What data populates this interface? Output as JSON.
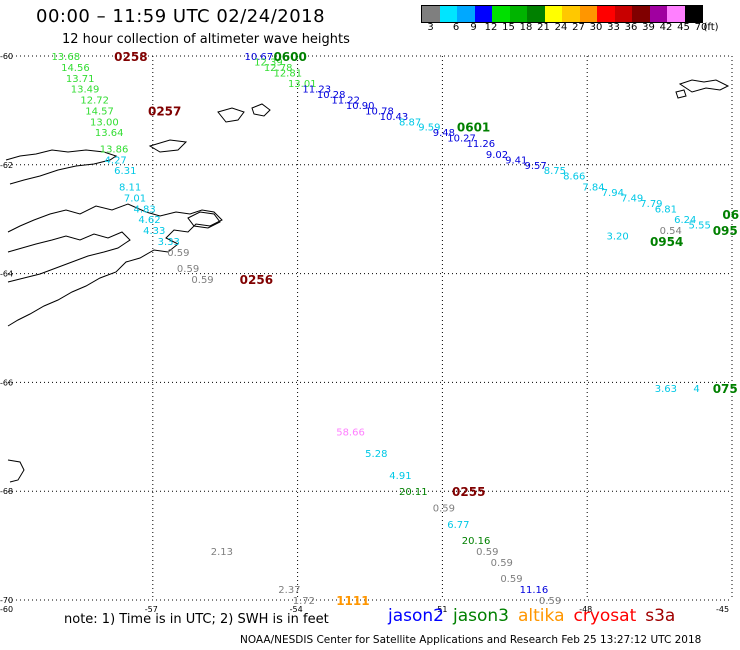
{
  "header": {
    "title": "00:00 – 11:59 UTC 02/24/2018",
    "subtitle": "12 hour collection of altimeter wave heights"
  },
  "colorbar": {
    "unit_label": "(ft)",
    "levels": [
      "3",
      "6",
      "9",
      "12",
      "15",
      "18",
      "21",
      "24",
      "27",
      "30",
      "33",
      "36",
      "39",
      "42",
      "45",
      "70"
    ],
    "colors": [
      "#7f7f7f",
      "#00e5ff",
      "#00a8ff",
      "#0000ff",
      "#00e000",
      "#00b400",
      "#008000",
      "#ffff00",
      "#ffc800",
      "#ff9600",
      "#ff0000",
      "#c80000",
      "#800000",
      "#a000a0",
      "#ff80ff",
      "#000000"
    ]
  },
  "axes": {
    "lat_ticks": [
      "-60",
      "-62",
      "-64",
      "-66",
      "-68",
      "-70"
    ],
    "lon_ticks": [
      "-60",
      "-57",
      "-54",
      "-51",
      "-48",
      "-45"
    ]
  },
  "map_points": [
    {
      "text": "13.68",
      "color": "#33dd33",
      "lat": -60.0,
      "lon": -59.1
    },
    {
      "text": "14.56",
      "color": "#33dd33",
      "lat": -60.2,
      "lon": -58.9
    },
    {
      "text": "13.71",
      "color": "#33dd33",
      "lat": -60.4,
      "lon": -58.8
    },
    {
      "text": "13.49",
      "color": "#33dd33",
      "lat": -60.6,
      "lon": -58.7
    },
    {
      "text": "12.72",
      "color": "#33dd33",
      "lat": -60.8,
      "lon": -58.5
    },
    {
      "text": "14.57",
      "color": "#33dd33",
      "lat": -61.0,
      "lon": -58.4
    },
    {
      "text": "13.00",
      "color": "#33dd33",
      "lat": -61.2,
      "lon": -58.3
    },
    {
      "text": "13.64",
      "color": "#33dd33",
      "lat": -61.4,
      "lon": -58.2
    },
    {
      "text": "13.86",
      "color": "#33dd33",
      "lat": -61.7,
      "lon": -58.1
    },
    {
      "text": "4.27",
      "color": "#00c8e6",
      "lat": -61.9,
      "lon": -58.0
    },
    {
      "text": "6.31",
      "color": "#00c8e6",
      "lat": -62.1,
      "lon": -57.8
    },
    {
      "text": "8.11",
      "color": "#00c8e6",
      "lat": -62.4,
      "lon": -57.7
    },
    {
      "text": "7.01",
      "color": "#00c8e6",
      "lat": -62.6,
      "lon": -57.6
    },
    {
      "text": "4.83",
      "color": "#00c8e6",
      "lat": -62.8,
      "lon": -57.4
    },
    {
      "text": "4.62",
      "color": "#00c8e6",
      "lat": -63.0,
      "lon": -57.3
    },
    {
      "text": "4.33",
      "color": "#00c8e6",
      "lat": -63.2,
      "lon": -57.2
    },
    {
      "text": "3.33",
      "color": "#00c8e6",
      "lat": -63.4,
      "lon": -56.9
    },
    {
      "text": "0.59",
      "color": "#7f7f7f",
      "lat": -63.6,
      "lon": -56.7
    },
    {
      "text": "0.59",
      "color": "#7f7f7f",
      "lat": -63.9,
      "lon": -56.5
    },
    {
      "text": "0.59",
      "color": "#7f7f7f",
      "lat": -64.1,
      "lon": -56.2
    },
    {
      "text": "10.67",
      "color": "#0000dd",
      "lat": -60.0,
      "lon": -55.1
    },
    {
      "text": "12.39",
      "color": "#33dd33",
      "lat": -60.1,
      "lon": -54.9
    },
    {
      "text": "12.78",
      "color": "#33dd33",
      "lat": -60.2,
      "lon": -54.7
    },
    {
      "text": "12.81",
      "color": "#33dd33",
      "lat": -60.3,
      "lon": -54.5
    },
    {
      "text": "13.01",
      "color": "#33dd33",
      "lat": -60.5,
      "lon": -54.2
    },
    {
      "text": "11.23",
      "color": "#0000dd",
      "lat": -60.6,
      "lon": -53.9
    },
    {
      "text": "10.28",
      "color": "#0000dd",
      "lat": -60.7,
      "lon": -53.6
    },
    {
      "text": "11.22",
      "color": "#0000dd",
      "lat": -60.8,
      "lon": -53.3
    },
    {
      "text": "10.90",
      "color": "#0000dd",
      "lat": -60.9,
      "lon": -53.0
    },
    {
      "text": "10.78",
      "color": "#0000dd",
      "lat": -61.0,
      "lon": -52.6
    },
    {
      "text": "10.43",
      "color": "#0000dd",
      "lat": -61.1,
      "lon": -52.3
    },
    {
      "text": "8.87",
      "color": "#00c8e6",
      "lat": -61.2,
      "lon": -51.9
    },
    {
      "text": "9.59",
      "color": "#00c8e6",
      "lat": -61.3,
      "lon": -51.5
    },
    {
      "text": "9.48",
      "color": "#0000dd",
      "lat": -61.4,
      "lon": -51.2
    },
    {
      "text": "10.27",
      "color": "#0000dd",
      "lat": -61.5,
      "lon": -50.9
    },
    {
      "text": "11.26",
      "color": "#0000dd",
      "lat": -61.6,
      "lon": -50.5
    },
    {
      "text": "9.02",
      "color": "#0000dd",
      "lat": -61.8,
      "lon": -50.1
    },
    {
      "text": "9.41",
      "color": "#0000dd",
      "lat": -61.9,
      "lon": -49.7
    },
    {
      "text": "9.57",
      "color": "#0000dd",
      "lat": -62.0,
      "lon": -49.3
    },
    {
      "text": "8.75",
      "color": "#00c8e6",
      "lat": -62.1,
      "lon": -48.9
    },
    {
      "text": "8.66",
      "color": "#00c8e6",
      "lat": -62.2,
      "lon": -48.5
    },
    {
      "text": "7.84",
      "color": "#00c8e6",
      "lat": -62.4,
      "lon": -48.1
    },
    {
      "text": "7.94",
      "color": "#00c8e6",
      "lat": -62.5,
      "lon": -47.7
    },
    {
      "text": "7.49",
      "color": "#00c8e6",
      "lat": -62.6,
      "lon": -47.3
    },
    {
      "text": "7.79",
      "color": "#00c8e6",
      "lat": -62.7,
      "lon": -46.9
    },
    {
      "text": "6.81",
      "color": "#00c8e6",
      "lat": -62.8,
      "lon": -46.6
    },
    {
      "text": "6.24",
      "color": "#00c8e6",
      "lat": -63.0,
      "lon": -46.2
    },
    {
      "text": "5.55",
      "color": "#00c8e6",
      "lat": -63.1,
      "lon": -45.9
    },
    {
      "text": "0.54",
      "color": "#7f7f7f",
      "lat": -63.2,
      "lon": -46.5
    },
    {
      "text": "3.20",
      "color": "#00c8e6",
      "lat": -63.3,
      "lon": -47.6
    },
    {
      "text": "3.63",
      "color": "#00c8e6",
      "lat": -66.1,
      "lon": -46.6
    },
    {
      "text": "4",
      "color": "#00c8e6",
      "lat": -66.1,
      "lon": -45.8
    },
    {
      "text": "58.66",
      "color": "#ff80ff",
      "lat": -66.9,
      "lon": -53.2
    },
    {
      "text": "5.28",
      "color": "#00c8e6",
      "lat": -67.3,
      "lon": -52.6
    },
    {
      "text": "4.91",
      "color": "#00c8e6",
      "lat": -67.7,
      "lon": -52.1
    },
    {
      "text": "20.11",
      "color": "#008000",
      "lat": -68.0,
      "lon": -51.9
    },
    {
      "text": "0.59",
      "color": "#7f7f7f",
      "lat": -68.3,
      "lon": -51.2
    },
    {
      "text": "6.77",
      "color": "#00c8e6",
      "lat": -68.6,
      "lon": -50.9
    },
    {
      "text": "20.16",
      "color": "#008000",
      "lat": -68.9,
      "lon": -50.6
    },
    {
      "text": "0.59",
      "color": "#7f7f7f",
      "lat": -69.1,
      "lon": -50.3
    },
    {
      "text": "0.59",
      "color": "#7f7f7f",
      "lat": -69.3,
      "lon": -50.0
    },
    {
      "text": "0.59",
      "color": "#7f7f7f",
      "lat": -69.6,
      "lon": -49.8
    },
    {
      "text": "11.16",
      "color": "#0000dd",
      "lat": -69.8,
      "lon": -49.4
    },
    {
      "text": "0.59",
      "color": "#7f7f7f",
      "lat": -70.0,
      "lon": -49.0
    },
    {
      "text": "2.13",
      "color": "#7f7f7f",
      "lat": -69.1,
      "lon": -55.8
    },
    {
      "text": "2.37",
      "color": "#7f7f7f",
      "lat": -69.8,
      "lon": -54.4
    },
    {
      "text": "1.72",
      "color": "#7f7f7f",
      "lat": -70.0,
      "lon": -54.1
    }
  ],
  "time_labels": [
    {
      "text": "0258",
      "color": "#800000",
      "lat": -60.0,
      "lon": -57.8
    },
    {
      "text": "0257",
      "color": "#800000",
      "lat": -61.0,
      "lon": -57.1
    },
    {
      "text": "0256",
      "color": "#800000",
      "lat": -64.1,
      "lon": -55.2
    },
    {
      "text": "0600",
      "color": "#008000",
      "lat": -60.0,
      "lon": -54.5
    },
    {
      "text": "0601",
      "color": "#008000",
      "lat": -61.3,
      "lon": -50.7
    },
    {
      "text": "0954",
      "color": "#008000",
      "lat": -63.4,
      "lon": -46.7
    },
    {
      "text": "095",
      "color": "#008000",
      "lat": -63.2,
      "lon": -45.4
    },
    {
      "text": "06",
      "color": "#008000",
      "lat": -62.9,
      "lon": -45.2
    },
    {
      "text": "075",
      "color": "#008000",
      "lat": -66.1,
      "lon": -45.4
    },
    {
      "text": "0255",
      "color": "#800000",
      "lat": -68.0,
      "lon": -50.8
    },
    {
      "text": "1111",
      "color": "#ff9600",
      "lat": -70.0,
      "lon": -53.2
    }
  ],
  "footer": {
    "note": "note: 1) Time is in UTC; 2) SWH is in feet",
    "credit": "NOAA/NESDIS Center for Satellite Applications and Research   Feb 25 13:27:12 UTC 2018"
  },
  "legend": [
    {
      "name": "jason2",
      "color": "#0000ff"
    },
    {
      "name": "jason3",
      "color": "#008000"
    },
    {
      "name": "altika",
      "color": "#ff9600"
    },
    {
      "name": "cryosat",
      "color": "#ff0000"
    },
    {
      "name": "s3a",
      "color": "#a00000"
    }
  ]
}
